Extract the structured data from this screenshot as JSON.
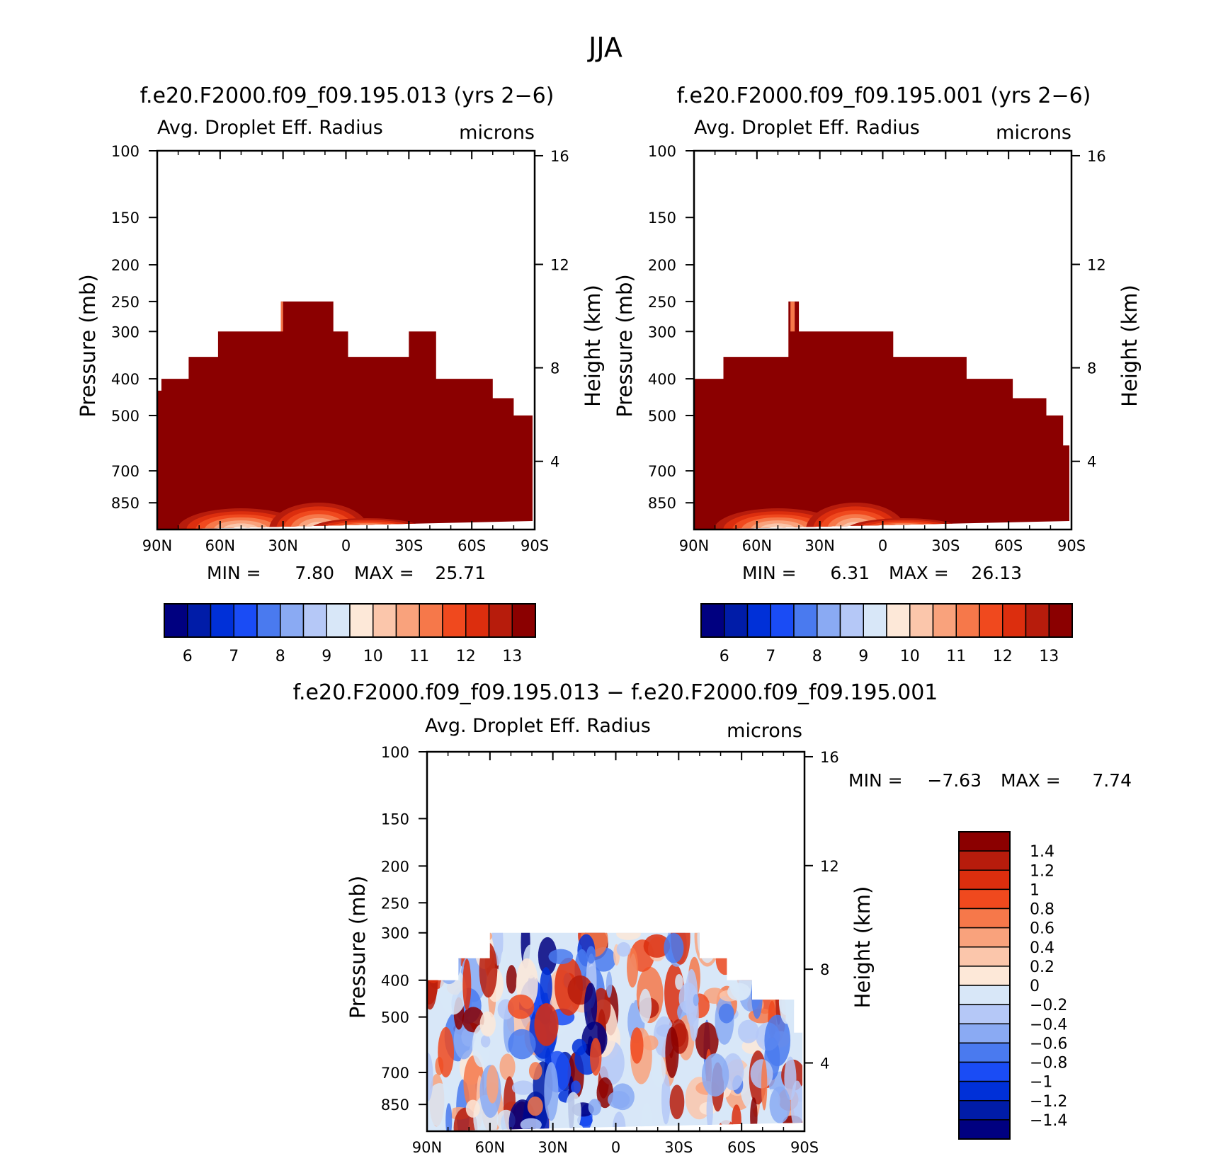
{
  "figure_title": "JJA",
  "colors": {
    "abs_levels": [
      "#000080",
      "#001ca8",
      "#0030d8",
      "#1a4cf5",
      "#4a7aef",
      "#8aaaf3",
      "#b5c8f7",
      "#d8e7f8",
      "#fde8d8",
      "#fbc6ab",
      "#f9a27c",
      "#f6784a",
      "#f0491e",
      "#dc2e0e",
      "#b71c0c",
      "#8b0000"
    ],
    "diff_levels": [
      "#000080",
      "#001ca8",
      "#0030d8",
      "#1a4cf5",
      "#4a7aef",
      "#8aaaf3",
      "#b5c8f7",
      "#d8e7f8",
      "#fde8d8",
      "#fbc6ab",
      "#f9a27c",
      "#f6784a",
      "#f0491e",
      "#dc2e0e",
      "#b71c0c",
      "#8b0000"
    ]
  },
  "panels": {
    "p1": {
      "title": "f.e20.F2000.f09_f09.195.013 (yrs 2−6)",
      "variable": "Avg. Droplet Eff. Radius",
      "units": "microns",
      "stats": {
        "min_label": "MIN =",
        "min_value": "7.80",
        "max_label": "MAX =",
        "max_value": "25.71"
      }
    },
    "p2": {
      "title": "f.e20.F2000.f09_f09.195.001 (yrs 2−6)",
      "variable": "Avg. Droplet Eff. Radius",
      "units": "microns",
      "stats": {
        "min_label": "MIN =",
        "min_value": "6.31",
        "max_label": "MAX =",
        "max_value": "26.13"
      }
    },
    "p3": {
      "title": "f.e20.F2000.f09_f09.195.013 − f.e20.F2000.f09_f09.195.001",
      "variable": "Avg. Droplet Eff. Radius",
      "units": "microns",
      "stats": {
        "min_label": "MIN =",
        "min_value": "−7.63",
        "max_label": "MAX =",
        "max_value": "7.74"
      }
    }
  },
  "chart_data": [
    {
      "type": "heatmap",
      "title": "f.e20.F2000.f09_f09.195.013 (yrs 2−6)",
      "subtitle": "Avg. Droplet Eff. Radius",
      "units": "microns",
      "xlabel": "",
      "ylabel": "Pressure (mb)",
      "ylabel_right": "Height (km)",
      "x_ticks": [
        "90N",
        "60N",
        "30N",
        "0",
        "30S",
        "60S",
        "90S"
      ],
      "x_range": [
        90,
        -90
      ],
      "y_ticks": [
        100,
        150,
        200,
        250,
        300,
        400,
        500,
        700,
        850
      ],
      "y_range": [
        100,
        1000
      ],
      "y_scale": "log",
      "y2_ticks": [
        16,
        12,
        8,
        4
      ],
      "colorbar_levels": [
        5.5,
        6,
        6.5,
        7,
        7.5,
        8,
        8.5,
        9,
        9.5,
        10,
        10.5,
        11,
        11.5,
        12,
        12.5,
        13
      ],
      "colorbar_labels": [
        "6",
        "7",
        "8",
        "9",
        "10",
        "11",
        "12",
        "13"
      ],
      "min": 7.8,
      "max": 25.71,
      "cloud_top_profile": {
        "lat": [
          90,
          88,
          80,
          75,
          72,
          70,
          61,
          32,
          31,
          6,
          -1,
          -30,
          -43,
          -58,
          -70,
          -73,
          -77,
          -80,
          -83,
          -86,
          -89
        ],
        "top_mb": [
          430,
          400,
          400,
          350,
          350,
          350,
          300,
          300,
          250,
          300,
          350,
          300,
          400,
          400,
          450,
          450,
          450,
          500,
          500,
          500,
          600
        ]
      },
      "near_surface_region": {
        "lat_range": [
          70,
          -30
        ],
        "value": 10.5
      }
    },
    {
      "type": "heatmap",
      "title": "f.e20.F2000.f09_f09.195.001 (yrs 2−6)",
      "subtitle": "Avg. Droplet Eff. Radius",
      "units": "microns",
      "xlabel": "",
      "ylabel": "Pressure (mb)",
      "ylabel_right": "Height (km)",
      "x_ticks": [
        "90N",
        "60N",
        "30N",
        "0",
        "30S",
        "60S",
        "90S"
      ],
      "x_range": [
        90,
        -90
      ],
      "y_ticks": [
        100,
        150,
        200,
        250,
        300,
        400,
        500,
        700,
        850
      ],
      "y_range": [
        100,
        1000
      ],
      "y_scale": "log",
      "y2_ticks": [
        16,
        12,
        8,
        4
      ],
      "colorbar_levels": [
        5.5,
        6,
        6.5,
        7,
        7.5,
        8,
        8.5,
        9,
        9.5,
        10,
        10.5,
        11,
        11.5,
        12,
        12.5,
        13
      ],
      "colorbar_labels": [
        "6",
        "7",
        "8",
        "9",
        "10",
        "11",
        "12",
        "13"
      ],
      "min": 6.31,
      "max": 26.13,
      "cloud_top_profile": {
        "lat": [
          90,
          76,
          62,
          45,
          40,
          2,
          -5,
          -25,
          -40,
          -50,
          -62,
          -72,
          -78,
          -82,
          -86,
          -89
        ],
        "top_mb": [
          400,
          350,
          350,
          250,
          300,
          300,
          350,
          350,
          400,
          400,
          450,
          450,
          500,
          500,
          600,
          600
        ]
      },
      "near_surface_region": {
        "lat_range": [
          70,
          -30
        ],
        "value": 10.5
      }
    },
    {
      "type": "heatmap",
      "title": "f.e20.F2000.f09_f09.195.013 − f.e20.F2000.f09_f09.195.001",
      "subtitle": "Avg. Droplet Eff. Radius",
      "units": "microns",
      "xlabel": "",
      "ylabel": "Pressure (mb)",
      "ylabel_right": "Height (km)",
      "x_ticks": [
        "90N",
        "60N",
        "30N",
        "0",
        "30S",
        "60S",
        "90S"
      ],
      "x_range": [
        90,
        -90
      ],
      "y_ticks": [
        100,
        150,
        200,
        250,
        300,
        400,
        500,
        700,
        850
      ],
      "y_range": [
        100,
        1000
      ],
      "y_scale": "log",
      "y2_ticks": [
        16,
        12,
        8,
        4
      ],
      "colorbar_levels": [
        -1.5,
        -1.4,
        -1.2,
        -1,
        -0.8,
        -0.6,
        -0.4,
        -0.2,
        0,
        0.2,
        0.4,
        0.6,
        0.8,
        1,
        1.2,
        1.4
      ],
      "colorbar_labels": [
        "1.4",
        "1.2",
        "1",
        "0.8",
        "0.6",
        "0.4",
        "0.2",
        "0",
        "−0.2",
        "−0.4",
        "−0.6",
        "−0.8",
        "−1",
        "−1.2",
        "−1.4"
      ],
      "min": -7.63,
      "max": 7.74,
      "cloud_top_profile": {
        "lat": [
          90,
          85,
          75,
          70,
          60,
          30,
          0,
          -31,
          -40,
          -53,
          -65,
          -72,
          -85,
          -89
        ],
        "top_mb": [
          400,
          400,
          350,
          350,
          300,
          300,
          300,
          300,
          350,
          400,
          450,
          450,
          550,
          600
        ]
      }
    }
  ]
}
